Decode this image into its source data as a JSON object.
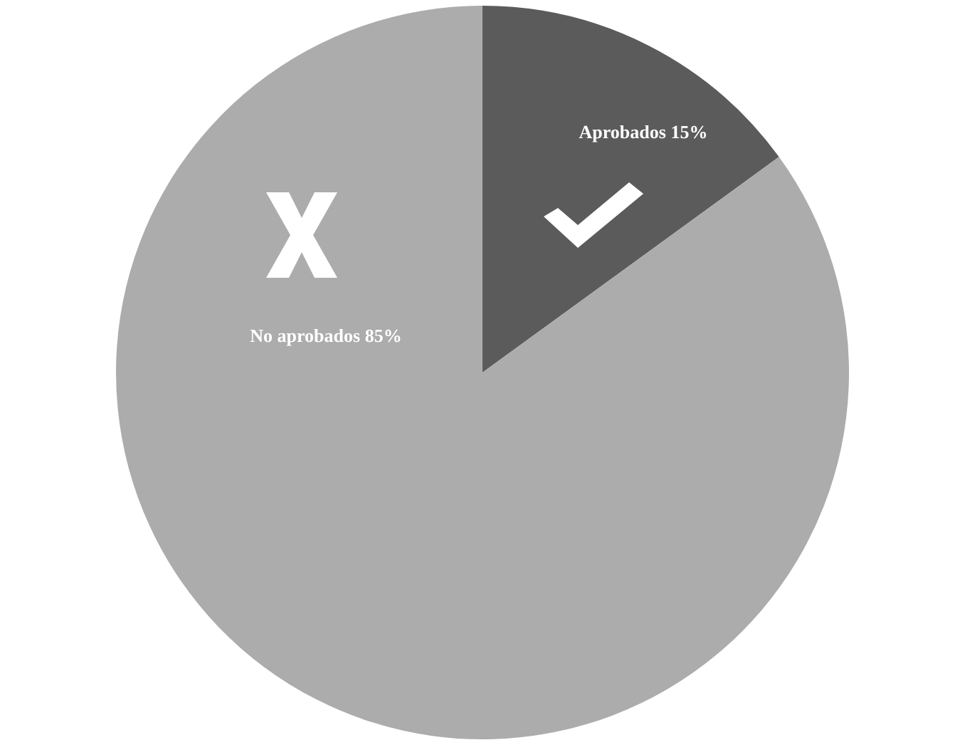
{
  "chart_data": {
    "type": "pie",
    "categories": [
      "Aprobados",
      "No aprobados"
    ],
    "values": [
      15,
      85
    ],
    "colors": [
      "#5b5b5b",
      "#acacac"
    ],
    "value_labels": [
      "15%",
      "85%"
    ],
    "legend": false
  }
}
